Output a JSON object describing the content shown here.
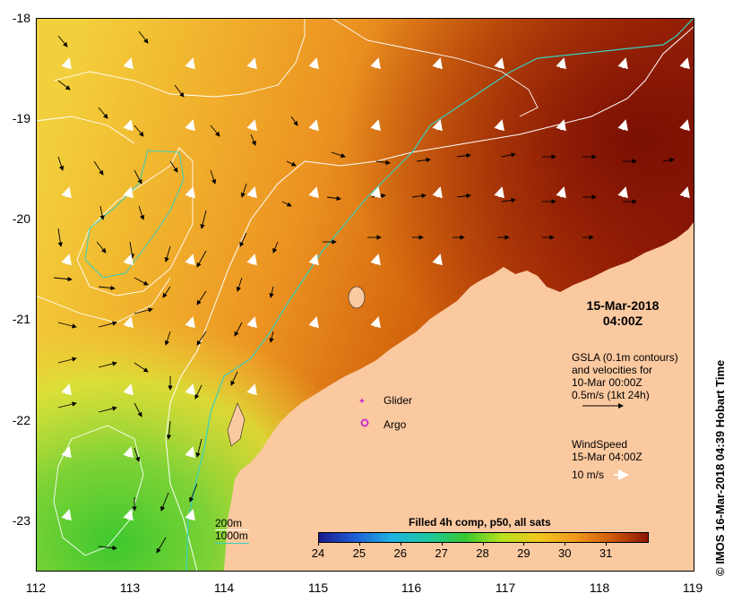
{
  "map": {
    "lat_ticks": [
      "-18",
      "-19",
      "-20",
      "-21",
      "-22",
      "-23"
    ],
    "lon_ticks": [
      "112",
      "113",
      "114",
      "115",
      "116",
      "117",
      "118",
      "119"
    ],
    "lon_range": [
      112,
      119
    ],
    "lat_range": [
      -23.55,
      -18
    ],
    "land_color": "#fbc9a0",
    "ocean_colors": [
      "#f2c33a",
      "#ef9a22",
      "#c8550a",
      "#8c1606",
      "#b6e43a",
      "#58c832"
    ]
  },
  "labels": {
    "timestamp_date": "15-Mar-2018",
    "timestamp_time": "04:00Z",
    "gsla_line1": "GSLA (0.1m contours)",
    "gsla_line2": "and velocities for",
    "gsla_line3": "10-Mar 00:00Z",
    "gsla_line4": "0.5m/s (1kt 24h)",
    "wind_line1": "WindSpeed",
    "wind_line2": "15-Mar 04:00Z",
    "wind_scale": "10 m/s",
    "glider": "Glider",
    "argo": "Argo",
    "contour_200": "200m",
    "contour_1000": "1000m",
    "colorbar_title": "Filled 4h comp, p50, all sats",
    "credit": "© IMOS 16-Mar-2018 04:39 Hobart Time"
  },
  "colorbar": {
    "ticks": [
      "24",
      "25",
      "26",
      "27",
      "28",
      "29",
      "30",
      "31"
    ],
    "min": 24,
    "max": 32,
    "colors": [
      "#1a1a8c",
      "#1f5fd6",
      "#1fb2e0",
      "#1cc8a0",
      "#39c832",
      "#b8e01e",
      "#f0c81e",
      "#f09a1e",
      "#d05a0a",
      "#8c1606"
    ]
  },
  "markers": {
    "glider_color": "#cc33cc",
    "argo_color": "#cc33cc"
  }
}
